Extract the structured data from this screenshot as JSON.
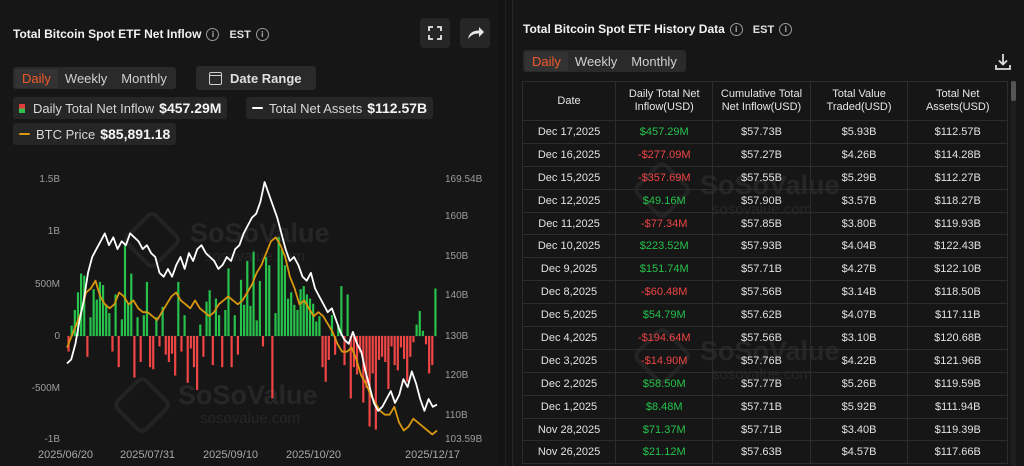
{
  "left": {
    "title": "Total Bitcoin Spot ETF Net Inflow",
    "tz": "EST",
    "tabs": [
      "Daily",
      "Weekly",
      "Monthly"
    ],
    "active_tab": "Daily",
    "date_range_label": "Date Range",
    "legend": {
      "inflow_label": "Daily Total Net Inflow",
      "inflow_value": "$457.29M",
      "assets_label": "Total Net Assets",
      "assets_value": "$112.57B",
      "btc_label": "BTC Price",
      "btc_value": "$85,891.18"
    },
    "watermark": {
      "brand": "SoSoValue",
      "site": "sosovalue.com"
    }
  },
  "right": {
    "title": "Total Bitcoin Spot ETF History Data",
    "tz": "EST",
    "tabs": [
      "Daily",
      "Weekly",
      "Monthly"
    ],
    "active_tab": "Daily",
    "columns": [
      "Date",
      "Daily Total Net Inflow(USD)",
      "Cumulative Total Net Inflow(USD)",
      "Total Value Traded(USD)",
      "Total Net Assets(USD)"
    ],
    "rows": [
      [
        "Dec 17,2025",
        "$457.29M",
        "$57.73B",
        "$5.93B",
        "$112.57B"
      ],
      [
        "Dec 16,2025",
        "-$277.09M",
        "$57.27B",
        "$4.26B",
        "$114.28B"
      ],
      [
        "Dec 15,2025",
        "-$357.69M",
        "$57.55B",
        "$5.29B",
        "$112.27B"
      ],
      [
        "Dec 12,2025",
        "$49.16M",
        "$57.90B",
        "$3.57B",
        "$118.27B"
      ],
      [
        "Dec 11,2025",
        "-$77.34M",
        "$57.85B",
        "$3.80B",
        "$119.93B"
      ],
      [
        "Dec 10,2025",
        "$223.52M",
        "$57.93B",
        "$4.04B",
        "$122.43B"
      ],
      [
        "Dec 9,2025",
        "$151.74M",
        "$57.71B",
        "$4.27B",
        "$122.10B"
      ],
      [
        "Dec 8,2025",
        "-$60.48M",
        "$57.56B",
        "$3.14B",
        "$118.50B"
      ],
      [
        "Dec 5,2025",
        "$54.79M",
        "$57.62B",
        "$4.07B",
        "$117.11B"
      ],
      [
        "Dec 4,2025",
        "-$194.64M",
        "$57.56B",
        "$3.10B",
        "$120.68B"
      ],
      [
        "Dec 3,2025",
        "-$14.90M",
        "$57.76B",
        "$4.22B",
        "$121.96B"
      ],
      [
        "Dec 2,2025",
        "$58.50M",
        "$57.77B",
        "$5.26B",
        "$119.59B"
      ],
      [
        "Dec 1,2025",
        "$8.48M",
        "$57.71B",
        "$5.92B",
        "$111.94B"
      ],
      [
        "Nov 28,2025",
        "$71.37M",
        "$57.71B",
        "$3.40B",
        "$119.39B"
      ],
      [
        "Nov 26,2025",
        "$21.12M",
        "$57.63B",
        "$4.57B",
        "$117.66B"
      ]
    ]
  },
  "colors": {
    "accent": "#f25a2a",
    "positive": "#27c24c",
    "negative": "#f04545",
    "assets_line": "#ffffff",
    "btc_line": "#d9960f"
  },
  "icons": [
    "info-icon",
    "fullscreen-icon",
    "share-icon",
    "calendar-icon",
    "download-icon"
  ],
  "chart_data": {
    "type": "bar",
    "x_ticks": [
      "2025/06/20",
      "2025/07/31",
      "2025/09/10",
      "2025/10/20",
      "2025/12/17"
    ],
    "y_left_ticks": [
      "1.5B",
      "1B",
      "500M",
      "0",
      "-500M",
      "-1B"
    ],
    "y_left_range": [
      -1000,
      1500
    ],
    "y_right_ticks": [
      "169.54B",
      "160B",
      "150B",
      "140B",
      "130B",
      "120B",
      "110B",
      "103.59B"
    ],
    "y_right_range": [
      103.59,
      169.54
    ],
    "series": [
      {
        "name": "Daily Total Net Inflow",
        "kind": "bar",
        "unit": "M USD",
        "values": [
          -150,
          100,
          250,
          420,
          600,
          580,
          -200,
          180,
          450,
          350,
          520,
          490,
          300,
          220,
          -150,
          400,
          -300,
          160,
          880,
          320,
          600,
          -400,
          180,
          -250,
          200,
          520,
          -300,
          -320,
          180,
          -100,
          280,
          -180,
          -250,
          -170,
          -380,
          520,
          -150,
          200,
          -450,
          -120,
          -300,
          -520,
          110,
          -200,
          330,
          440,
          -280,
          360,
          200,
          -300,
          250,
          650,
          -300,
          200,
          -180,
          540,
          300,
          720,
          290,
          810,
          150,
          530,
          -100,
          760,
          680,
          -600,
          220,
          950,
          840,
          680,
          360,
          420,
          300,
          250,
          450,
          480,
          400,
          360,
          310,
          140,
          190,
          -300,
          -440,
          -230,
          200,
          -180,
          110,
          480,
          -280,
          400,
          -600,
          -300,
          -370,
          -160,
          -640,
          -500,
          -870,
          -360,
          -900,
          -230,
          -200,
          -250,
          -510,
          -100,
          -280,
          -330,
          -110,
          -220,
          -440,
          -200,
          -60,
          110,
          240,
          50,
          -80,
          -360,
          -280,
          457
        ]
      },
      {
        "name": "Total Net Assets",
        "kind": "line",
        "unit": "B USD",
        "values": [
          123,
          124,
          128,
          134,
          139,
          146,
          150,
          152,
          154,
          156,
          153,
          155,
          152,
          154,
          153,
          156,
          155,
          154,
          152,
          153,
          151,
          150,
          146,
          145,
          147,
          145,
          148,
          150,
          147,
          151,
          149,
          152,
          153,
          151,
          150,
          149,
          147,
          148,
          150,
          149,
          152,
          153,
          156,
          158,
          160,
          161,
          164,
          169,
          166,
          163,
          160,
          156,
          152,
          149,
          150,
          148,
          145,
          144,
          146,
          142,
          140,
          138,
          136,
          137,
          134,
          131,
          129,
          128,
          131,
          128,
          126,
          121,
          117,
          113,
          111,
          112,
          114,
          116,
          113,
          115,
          119,
          117,
          121,
          118,
          114,
          111,
          114,
          112,
          112.57
        ]
      },
      {
        "name": "BTC Price",
        "kind": "line",
        "unit": "B USD (right-axis units as shown)",
        "values": [
          127,
          130,
          133,
          136,
          141,
          142,
          144,
          140,
          138,
          137,
          138,
          141,
          140,
          138,
          139,
          137,
          136,
          136,
          135,
          134,
          136,
          138,
          140,
          141,
          139,
          138,
          137,
          139,
          137,
          136,
          135,
          136,
          138,
          139,
          140,
          139,
          138,
          139,
          141,
          143,
          146,
          148,
          151,
          154,
          155,
          153,
          150,
          145,
          142,
          138,
          139,
          137,
          135,
          136,
          135,
          133,
          131,
          128,
          126,
          126,
          127,
          124,
          120,
          118,
          115,
          113,
          111,
          110,
          110,
          112,
          108,
          106,
          107,
          109,
          108,
          107,
          106,
          105,
          106
        ]
      }
    ]
  }
}
